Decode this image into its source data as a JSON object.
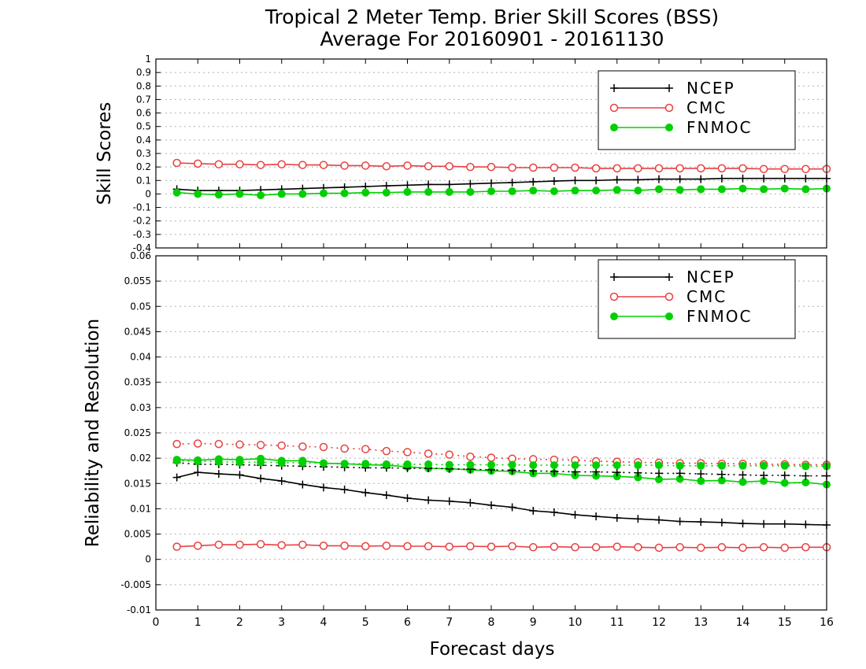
{
  "figure": {
    "title_line1": "Tropical 2 Meter Temp. Brier Skill Scores (BSS)",
    "title_line2": "Average For 20160901 - 20161130",
    "xlabel": "Forecast days"
  },
  "colors": {
    "NCEP": "#000000",
    "CMC": "#e84040",
    "FNMOC": "#00d000"
  },
  "chart_data": [
    {
      "type": "line",
      "ylabel": "Skill Scores",
      "ylim": [
        -0.4,
        1
      ],
      "yticks": [
        -0.4,
        -0.3,
        -0.2,
        -0.1,
        0,
        0.1,
        0.2,
        0.3,
        0.4,
        0.5,
        0.6,
        0.7,
        0.8,
        0.9,
        1
      ],
      "ytick_labels": [
        "-0.4",
        "-0.3",
        "-0.2",
        "-0.1",
        "0",
        "0.1",
        "0.2",
        "0.3",
        "0.4",
        "0.5",
        "0.6",
        "0.7",
        "0.8",
        "0.9",
        "1"
      ],
      "xlim": [
        0,
        16
      ],
      "xticks": [
        0,
        1,
        2,
        3,
        4,
        5,
        6,
        7,
        8,
        9,
        10,
        11,
        12,
        13,
        14,
        15,
        16
      ],
      "grid": true,
      "legend_position": "top-right",
      "x": [
        0.5,
        1,
        1.5,
        2,
        2.5,
        3,
        3.5,
        4,
        4.5,
        5,
        5.5,
        6,
        6.5,
        7,
        7.5,
        8,
        8.5,
        9,
        9.5,
        10,
        10.5,
        11,
        11.5,
        12,
        12.5,
        13,
        13.5,
        14,
        14.5,
        15,
        15.5,
        16
      ],
      "series": [
        {
          "name": "NCEP",
          "style": "solid",
          "marker": "plus",
          "values": [
            0.035,
            0.025,
            0.025,
            0.025,
            0.03,
            0.035,
            0.04,
            0.045,
            0.05,
            0.055,
            0.06,
            0.065,
            0.07,
            0.07,
            0.075,
            0.08,
            0.085,
            0.09,
            0.095,
            0.1,
            0.1,
            0.105,
            0.105,
            0.11,
            0.11,
            0.11,
            0.115,
            0.115,
            0.115,
            0.115,
            0.115,
            0.115
          ]
        },
        {
          "name": "CMC",
          "style": "solid",
          "marker": "open-circle",
          "values": [
            0.23,
            0.225,
            0.22,
            0.22,
            0.215,
            0.22,
            0.215,
            0.215,
            0.21,
            0.21,
            0.205,
            0.21,
            0.205,
            0.205,
            0.2,
            0.2,
            0.195,
            0.195,
            0.195,
            0.195,
            0.19,
            0.19,
            0.19,
            0.19,
            0.19,
            0.19,
            0.19,
            0.19,
            0.185,
            0.185,
            0.185,
            0.185
          ]
        },
        {
          "name": "FNMOC",
          "style": "solid",
          "marker": "filled-circle",
          "values": [
            0.01,
            0.0,
            -0.005,
            0.0,
            -0.01,
            0.0,
            0.0,
            0.005,
            0.005,
            0.01,
            0.01,
            0.015,
            0.015,
            0.015,
            0.015,
            0.02,
            0.02,
            0.025,
            0.02,
            0.025,
            0.025,
            0.03,
            0.025,
            0.035,
            0.03,
            0.035,
            0.035,
            0.04,
            0.035,
            0.04,
            0.035,
            0.04
          ]
        }
      ]
    },
    {
      "type": "line",
      "ylabel": "Reliability and Resolution",
      "ylim": [
        -0.01,
        0.06
      ],
      "yticks": [
        -0.01,
        -0.005,
        0,
        0.005,
        0.01,
        0.015,
        0.02,
        0.025,
        0.03,
        0.035,
        0.04,
        0.045,
        0.05,
        0.055,
        0.06
      ],
      "ytick_labels": [
        "-0.01",
        "-0.005",
        "0",
        "0.005",
        "0.01",
        "0.015",
        "0.02",
        "0.025",
        "0.03",
        "0.035",
        "0.04",
        "0.045",
        "0.05",
        "0.055",
        "0.06"
      ],
      "xlim": [
        0,
        16
      ],
      "xticks": [
        0,
        1,
        2,
        3,
        4,
        5,
        6,
        7,
        8,
        9,
        10,
        11,
        12,
        13,
        14,
        15,
        16
      ],
      "grid": true,
      "legend_position": "top-right",
      "x": [
        0.5,
        1,
        1.5,
        2,
        2.5,
        3,
        3.5,
        4,
        4.5,
        5,
        5.5,
        6,
        6.5,
        7,
        7.5,
        8,
        8.5,
        9,
        9.5,
        10,
        10.5,
        11,
        11.5,
        12,
        12.5,
        13,
        13.5,
        14,
        14.5,
        15,
        15.5,
        16
      ],
      "series": [
        {
          "name": "NCEP",
          "style": "solid",
          "marker": "plus",
          "values": [
            0.0162,
            0.0172,
            0.0169,
            0.0167,
            0.016,
            0.0155,
            0.0148,
            0.0142,
            0.0138,
            0.0132,
            0.0127,
            0.0121,
            0.0117,
            0.0115,
            0.0112,
            0.0107,
            0.0103,
            0.0096,
            0.0093,
            0.0088,
            0.0085,
            0.0082,
            0.008,
            0.0078,
            0.0075,
            0.0074,
            0.0073,
            0.0071,
            0.007,
            0.007,
            0.0069,
            0.0068
          ]
        },
        {
          "name": "CMC",
          "style": "solid",
          "marker": "open-circle",
          "values": [
            0.0025,
            0.0027,
            0.0029,
            0.0029,
            0.003,
            0.0028,
            0.0029,
            0.0027,
            0.0027,
            0.0026,
            0.0027,
            0.0026,
            0.0026,
            0.0025,
            0.0026,
            0.0025,
            0.0026,
            0.0024,
            0.0025,
            0.0024,
            0.0024,
            0.0025,
            0.0024,
            0.0023,
            0.0024,
            0.0023,
            0.0024,
            0.0023,
            0.0024,
            0.0023,
            0.0024,
            0.0024
          ]
        },
        {
          "name": "FNMOC",
          "style": "solid",
          "marker": "filled-circle",
          "values": [
            0.0197,
            0.0196,
            0.0198,
            0.0197,
            0.0199,
            0.0195,
            0.0195,
            0.019,
            0.0189,
            0.0187,
            0.0186,
            0.0183,
            0.018,
            0.0179,
            0.0177,
            0.0175,
            0.0174,
            0.017,
            0.017,
            0.0166,
            0.0165,
            0.0164,
            0.0162,
            0.0158,
            0.0159,
            0.0155,
            0.0156,
            0.0153,
            0.0155,
            0.0151,
            0.0152,
            0.0148
          ]
        },
        {
          "name": "NCEP",
          "style": "dotted",
          "marker": "plus",
          "values": [
            0.0191,
            0.0188,
            0.0188,
            0.0187,
            0.0186,
            0.0185,
            0.0184,
            0.0183,
            0.0182,
            0.0181,
            0.0181,
            0.018,
            0.018,
            0.0179,
            0.0178,
            0.0177,
            0.0176,
            0.0175,
            0.0174,
            0.0173,
            0.0173,
            0.0172,
            0.0171,
            0.017,
            0.017,
            0.0169,
            0.0168,
            0.0167,
            0.0166,
            0.0166,
            0.0165,
            0.0165
          ]
        },
        {
          "name": "CMC",
          "style": "dotted",
          "marker": "open-circle",
          "values": [
            0.0228,
            0.0229,
            0.0228,
            0.0227,
            0.0226,
            0.0225,
            0.0223,
            0.0222,
            0.0219,
            0.0218,
            0.0214,
            0.0212,
            0.0209,
            0.0207,
            0.0203,
            0.0201,
            0.0199,
            0.0198,
            0.0197,
            0.0196,
            0.0194,
            0.0193,
            0.0192,
            0.0191,
            0.019,
            0.019,
            0.0189,
            0.0189,
            0.0188,
            0.0188,
            0.0187,
            0.0187
          ]
        },
        {
          "name": "FNMOC",
          "style": "dotted",
          "marker": "filled-circle",
          "values": [
            0.0195,
            0.0194,
            0.0193,
            0.0192,
            0.0192,
            0.0191,
            0.0191,
            0.019,
            0.0189,
            0.0189,
            0.0188,
            0.0188,
            0.0188,
            0.0187,
            0.0187,
            0.0187,
            0.0187,
            0.0186,
            0.0186,
            0.0186,
            0.0186,
            0.0186,
            0.0186,
            0.0186,
            0.0185,
            0.0185,
            0.0185,
            0.0185,
            0.0185,
            0.0185,
            0.0184,
            0.0184
          ]
        }
      ]
    }
  ]
}
